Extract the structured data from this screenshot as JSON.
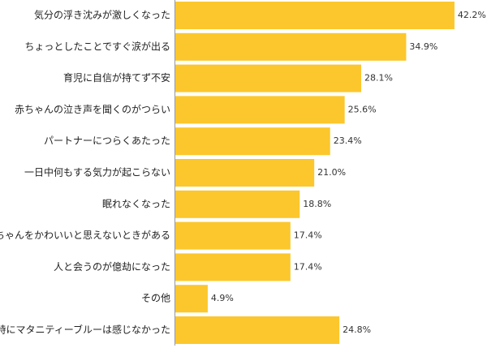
{
  "chart_data": {
    "type": "bar",
    "orientation": "horizontal",
    "color": "#fcc72c",
    "categories": [
      "気分の浮き沈みが激しくなった",
      "ちょっとしたことですぐ涙が出る",
      "育児に自信が持てず不安",
      "赤ちゃんの泣き声を聞くのがつらい",
      "パートナーにつらくあたった",
      "一日中何もする気力が起こらない",
      "眠れなくなった",
      "赤ちゃんをかわいいと思えないときがある",
      "人と会うのが億劫になった",
      "その他",
      "特にマタニティーブルーは感じなかった"
    ],
    "values": [
      42.2,
      34.9,
      28.1,
      25.6,
      23.4,
      21.0,
      18.8,
      17.4,
      17.4,
      4.9,
      24.8
    ],
    "value_labels": [
      "42.2%",
      "34.9%",
      "28.1%",
      "25.6%",
      "23.4%",
      "21.0%",
      "18.8%",
      "17.4%",
      "17.4%",
      "4.9%",
      "24.8%"
    ]
  }
}
